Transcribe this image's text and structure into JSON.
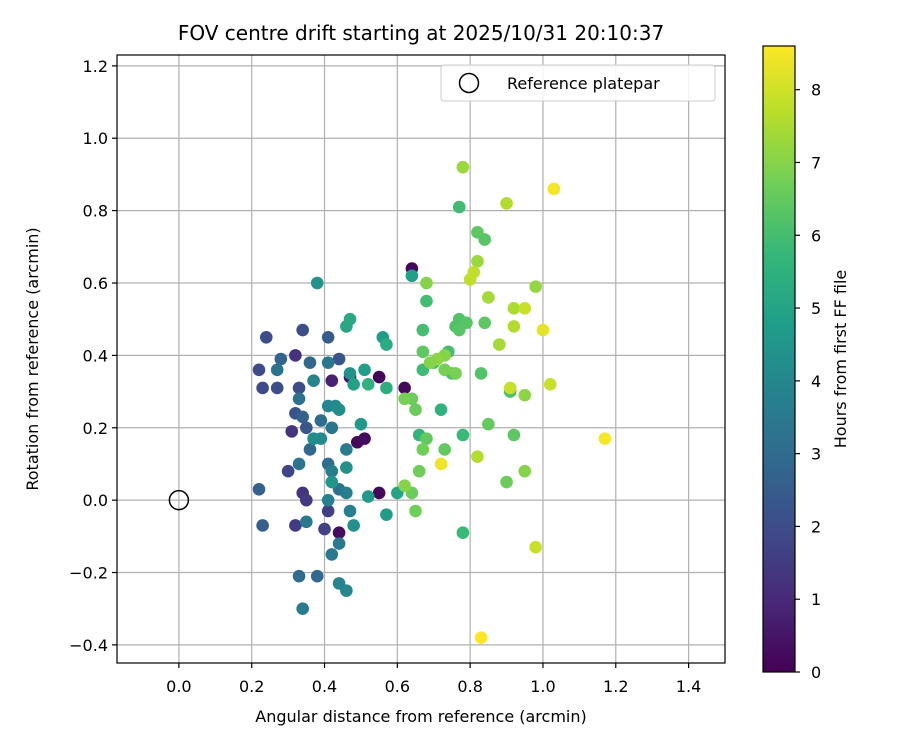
{
  "chart_data": {
    "type": "scatter",
    "title": "FOV centre drift starting at 2025/10/31 20:10:37",
    "xlabel": "Angular distance from reference (arcmin)",
    "ylabel": "Rotation from reference (arcmin)",
    "xlim": [
      -0.17,
      1.5
    ],
    "ylim": [
      -0.45,
      1.23
    ],
    "xticks": [
      0.0,
      0.2,
      0.4,
      0.6,
      0.8,
      1.0,
      1.2,
      1.4
    ],
    "xtick_labels": [
      "0.0",
      "0.2",
      "0.4",
      "0.6",
      "0.8",
      "1.0",
      "1.2",
      "1.4"
    ],
    "yticks": [
      -0.4,
      -0.2,
      0.0,
      0.2,
      0.4,
      0.6,
      0.8,
      1.0,
      1.2
    ],
    "ytick_labels": [
      "−0.4",
      "−0.2",
      "0.0",
      "0.2",
      "0.4",
      "0.6",
      "0.8",
      "1.0",
      "1.2"
    ],
    "grid": true,
    "legend": {
      "location": "top-right",
      "entries": [
        "Reference platepar"
      ]
    },
    "reference_point": {
      "x": 0.0,
      "y": 0.0,
      "label": "Reference platepar"
    },
    "colorbar": {
      "label": "Hours from first FF file",
      "range": [
        0,
        8.6
      ],
      "ticks": [
        0,
        1,
        2,
        3,
        4,
        5,
        6,
        7,
        8
      ],
      "colormap": "viridis",
      "colormap_stops": [
        "#440154",
        "#482878",
        "#3e4a89",
        "#31688e",
        "#26828e",
        "#1f9e89",
        "#35b779",
        "#6ece58",
        "#b5de2b",
        "#fde725"
      ]
    },
    "series": [
      {
        "name": "FOV centre",
        "points": [
          [
            0.64,
            0.64,
            0.2
          ],
          [
            0.62,
            0.31,
            0.2
          ],
          [
            0.55,
            0.34,
            0.1
          ],
          [
            0.49,
            0.16,
            0.2
          ],
          [
            0.51,
            0.17,
            0.3
          ],
          [
            0.55,
            0.02,
            0.2
          ],
          [
            0.44,
            -0.09,
            0.3
          ],
          [
            0.47,
            0.34,
            0.3
          ],
          [
            0.42,
            0.33,
            0.8
          ],
          [
            0.32,
            0.4,
            1.2
          ],
          [
            0.31,
            0.19,
            1.3
          ],
          [
            0.34,
            0.02,
            1.3
          ],
          [
            0.35,
            0.0,
            1.5
          ],
          [
            0.32,
            -0.07,
            1.5
          ],
          [
            0.41,
            -0.03,
            1.6
          ],
          [
            0.4,
            -0.08,
            1.7
          ],
          [
            0.3,
            0.08,
            1.8
          ],
          [
            0.22,
            0.36,
            1.9
          ],
          [
            0.23,
            0.31,
            1.9
          ],
          [
            0.27,
            0.31,
            2.0
          ],
          [
            0.24,
            0.45,
            2.0
          ],
          [
            0.33,
            0.31,
            2.0
          ],
          [
            0.34,
            0.47,
            2.0
          ],
          [
            0.32,
            0.24,
            2.2
          ],
          [
            0.35,
            0.2,
            2.3
          ],
          [
            0.44,
            0.39,
            2.3
          ],
          [
            0.41,
            0.45,
            2.5
          ],
          [
            0.23,
            -0.07,
            2.6
          ],
          [
            0.22,
            0.03,
            2.7
          ],
          [
            0.28,
            0.39,
            2.8
          ],
          [
            0.36,
            0.38,
            2.9
          ],
          [
            0.38,
            -0.21,
            2.9
          ],
          [
            0.33,
            -0.21,
            3.0
          ],
          [
            0.34,
            0.23,
            2.7
          ],
          [
            0.36,
            0.14,
            2.9
          ],
          [
            0.39,
            0.22,
            3.0
          ],
          [
            0.41,
            0.1,
            3.1
          ],
          [
            0.44,
            0.03,
            3.2
          ],
          [
            0.33,
            0.28,
            3.2
          ],
          [
            0.27,
            0.36,
            3.3
          ],
          [
            0.33,
            0.1,
            3.3
          ],
          [
            0.35,
            -0.06,
            3.4
          ],
          [
            0.41,
            0.38,
            3.4
          ],
          [
            0.42,
            0.2,
            3.3
          ],
          [
            0.42,
            -0.15,
            3.5
          ],
          [
            0.44,
            -0.12,
            3.5
          ],
          [
            0.46,
            0.14,
            3.6
          ],
          [
            0.34,
            -0.3,
            3.6
          ],
          [
            0.42,
            0.08,
            3.7
          ],
          [
            0.46,
            0.02,
            3.7
          ],
          [
            0.41,
            0.0,
            3.8
          ],
          [
            0.47,
            -0.03,
            3.8
          ],
          [
            0.44,
            -0.23,
            3.9
          ],
          [
            0.37,
            0.33,
            3.9
          ],
          [
            0.46,
            -0.25,
            4.0
          ],
          [
            0.41,
            0.26,
            4.0
          ],
          [
            0.43,
            0.26,
            4.1
          ],
          [
            0.39,
            0.17,
            4.1
          ],
          [
            0.37,
            0.17,
            4.2
          ],
          [
            0.44,
            0.25,
            4.2
          ],
          [
            0.46,
            0.09,
            4.3
          ],
          [
            0.48,
            -0.07,
            4.3
          ],
          [
            0.47,
            0.35,
            4.4
          ],
          [
            0.38,
            0.6,
            4.4
          ],
          [
            0.42,
            0.05,
            4.5
          ],
          [
            0.5,
            0.21,
            4.6
          ],
          [
            0.52,
            0.01,
            4.6
          ],
          [
            0.56,
            0.45,
            4.7
          ],
          [
            0.57,
            -0.04,
            4.7
          ],
          [
            0.64,
            0.62,
            4.8
          ],
          [
            0.51,
            0.36,
            4.8
          ],
          [
            0.48,
            0.32,
            4.9
          ],
          [
            0.6,
            0.02,
            5.0
          ],
          [
            0.46,
            0.48,
            5.1
          ],
          [
            0.47,
            0.5,
            5.2
          ],
          [
            0.57,
            0.43,
            5.3
          ],
          [
            0.57,
            0.31,
            5.4
          ],
          [
            0.52,
            0.32,
            5.5
          ],
          [
            0.72,
            0.25,
            5.5
          ],
          [
            0.66,
            0.18,
            5.6
          ],
          [
            0.77,
            0.81,
            5.9
          ],
          [
            0.78,
            0.18,
            5.8
          ],
          [
            0.78,
            -0.09,
            5.8
          ],
          [
            0.67,
            0.36,
            5.9
          ],
          [
            0.68,
            0.55,
            6.0
          ],
          [
            0.67,
            0.47,
            6.0
          ],
          [
            0.7,
            0.38,
            6.1
          ],
          [
            0.74,
            0.41,
            6.0
          ],
          [
            0.75,
            0.35,
            6.1
          ],
          [
            0.76,
            0.48,
            6.2
          ],
          [
            0.77,
            0.5,
            6.2
          ],
          [
            0.77,
            0.47,
            6.3
          ],
          [
            0.79,
            0.49,
            6.3
          ],
          [
            0.82,
            0.74,
            6.4
          ],
          [
            0.84,
            0.72,
            6.3
          ],
          [
            0.83,
            0.35,
            6.2
          ],
          [
            0.84,
            0.49,
            6.4
          ],
          [
            0.85,
            0.21,
            6.5
          ],
          [
            0.91,
            0.3,
            6.1
          ],
          [
            0.67,
            0.41,
            6.4
          ],
          [
            0.68,
            0.17,
            6.5
          ],
          [
            0.73,
            0.14,
            6.5
          ],
          [
            0.65,
            0.25,
            6.6
          ],
          [
            0.64,
            0.28,
            6.6
          ],
          [
            0.64,
            0.02,
            6.6
          ],
          [
            0.65,
            -0.03,
            6.7
          ],
          [
            0.66,
            0.08,
            6.7
          ],
          [
            0.67,
            0.14,
            6.7
          ],
          [
            0.62,
            0.28,
            6.8
          ],
          [
            0.92,
            0.18,
            6.4
          ],
          [
            0.9,
            0.05,
            6.6
          ],
          [
            0.73,
            0.36,
            6.8
          ],
          [
            0.76,
            0.35,
            6.8
          ],
          [
            0.78,
            0.92,
            7.3
          ],
          [
            0.68,
            0.6,
            7.0
          ],
          [
            0.73,
            0.4,
            7.0
          ],
          [
            0.71,
            0.39,
            7.1
          ],
          [
            0.69,
            0.38,
            7.0
          ],
          [
            0.62,
            0.04,
            7.0
          ],
          [
            0.95,
            0.08,
            7.0
          ],
          [
            0.95,
            0.29,
            7.1
          ],
          [
            0.98,
            0.59,
            7.2
          ],
          [
            0.82,
            0.66,
            7.3
          ],
          [
            0.85,
            0.56,
            7.4
          ],
          [
            0.88,
            0.43,
            7.4
          ],
          [
            0.9,
            0.82,
            7.6
          ],
          [
            0.92,
            0.53,
            7.5
          ],
          [
            0.92,
            0.48,
            7.6
          ],
          [
            0.82,
            0.12,
            7.6
          ],
          [
            0.81,
            0.63,
            7.8
          ],
          [
            0.8,
            0.61,
            7.8
          ],
          [
            0.91,
            0.31,
            7.9
          ],
          [
            0.95,
            0.53,
            7.9
          ],
          [
            1.02,
            0.32,
            7.9
          ],
          [
            0.98,
            -0.13,
            7.9
          ],
          [
            0.72,
            0.1,
            8.4
          ],
          [
            1.0,
            0.47,
            8.3
          ],
          [
            1.03,
            0.86,
            8.5
          ],
          [
            1.17,
            0.17,
            8.5
          ],
          [
            0.83,
            -0.38,
            8.6
          ]
        ]
      }
    ]
  }
}
